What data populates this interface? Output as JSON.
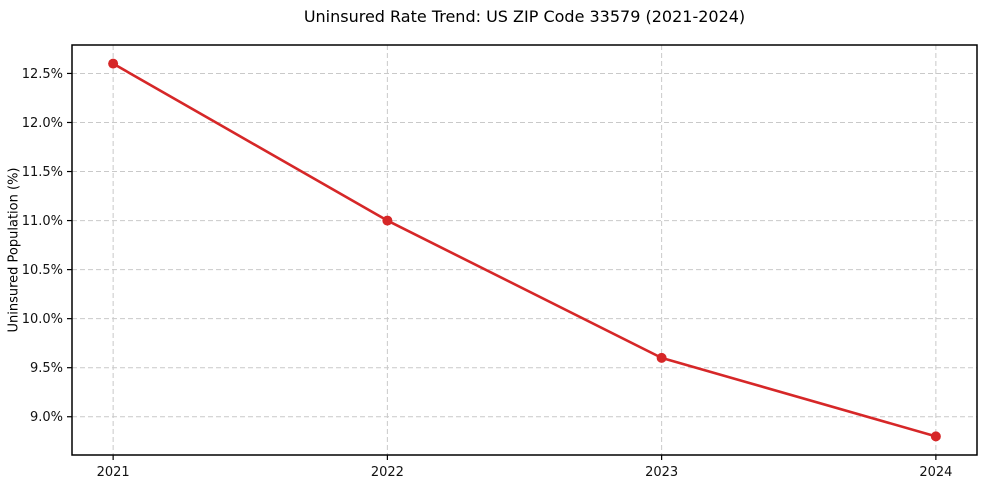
{
  "page": {
    "title": "Uninsured Rate Trend: US ZIP Code 33579 (2021-2024)"
  },
  "chart_data": {
    "type": "line",
    "title": "Uninsured Rate Trend: US ZIP Code 33579 (2021-2024)",
    "xlabel": "",
    "ylabel": "Uninsured Population (%)",
    "x": [
      2021,
      2022,
      2023,
      2024
    ],
    "series": [
      {
        "name": "uninsured-rate",
        "values": [
          12.6,
          11.0,
          9.6,
          8.8
        ],
        "color": "#d62728",
        "marker": "circle"
      }
    ],
    "xticks": [
      2021,
      2022,
      2023,
      2024
    ],
    "xtick_labels": [
      "2021",
      "2022",
      "2023",
      "2024"
    ],
    "yticks": [
      9.0,
      9.5,
      10.0,
      10.5,
      11.0,
      11.5,
      12.0,
      12.5
    ],
    "ytick_labels": [
      "9.0%",
      "9.5%",
      "10.0%",
      "10.5%",
      "11.0%",
      "11.5%",
      "12.0%",
      "12.5%"
    ],
    "xlim": [
      2020.85,
      2024.15
    ],
    "ylim": [
      8.61,
      12.79
    ],
    "grid": "dashed",
    "grid_color": "#c9c9c9",
    "axis_color": "#000000",
    "tick_label_color": "#111111",
    "background": "#ffffff",
    "legend": "none"
  }
}
